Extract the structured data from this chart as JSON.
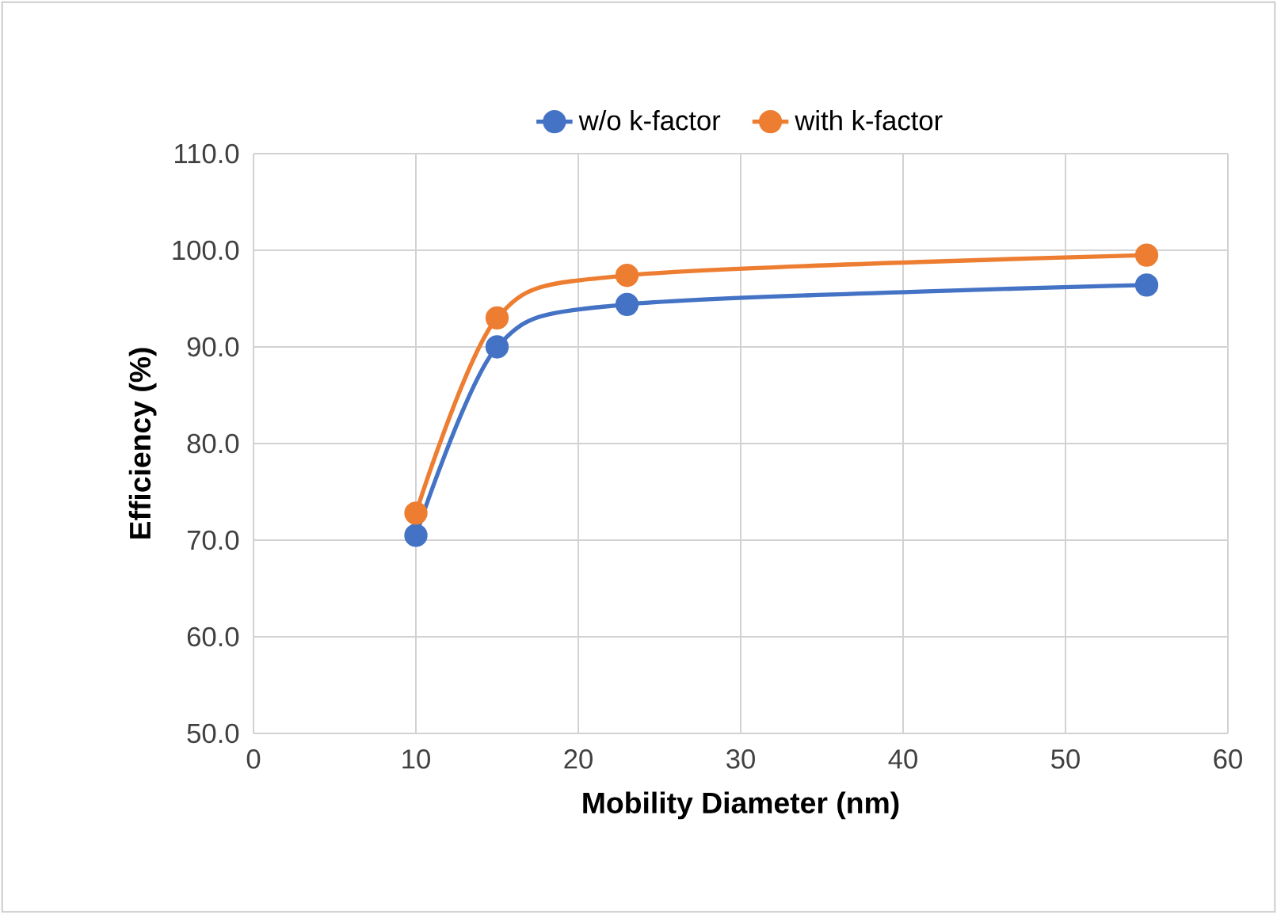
{
  "chart_data": {
    "type": "line",
    "xlabel": "Mobility Diameter (nm)",
    "ylabel": "Efficiency (%)",
    "x": [
      10,
      15,
      23,
      55
    ],
    "series": [
      {
        "name": "w/o k-factor",
        "color": "#4472c4",
        "values": [
          70.5,
          90.0,
          94.4,
          96.4
        ]
      },
      {
        "name": "with k-factor",
        "color": "#ed7d31",
        "values": [
          72.8,
          93.0,
          97.4,
          99.5
        ]
      }
    ],
    "xlim": [
      0,
      60
    ],
    "xticks": [
      0,
      10,
      20,
      30,
      40,
      50,
      60
    ],
    "ylim": [
      50,
      110
    ],
    "yticks": [
      {
        "value": 50,
        "label": "50.0"
      },
      {
        "value": 60,
        "label": "60.0"
      },
      {
        "value": 70,
        "label": "70.0"
      },
      {
        "value": 80,
        "label": "80.0"
      },
      {
        "value": 90,
        "label": "90.0"
      },
      {
        "value": 100,
        "label": "100.0"
      },
      {
        "value": 110,
        "label": "110.0"
      }
    ],
    "grid": true,
    "legend": "top",
    "marker": "circle",
    "line_style": "solid"
  }
}
